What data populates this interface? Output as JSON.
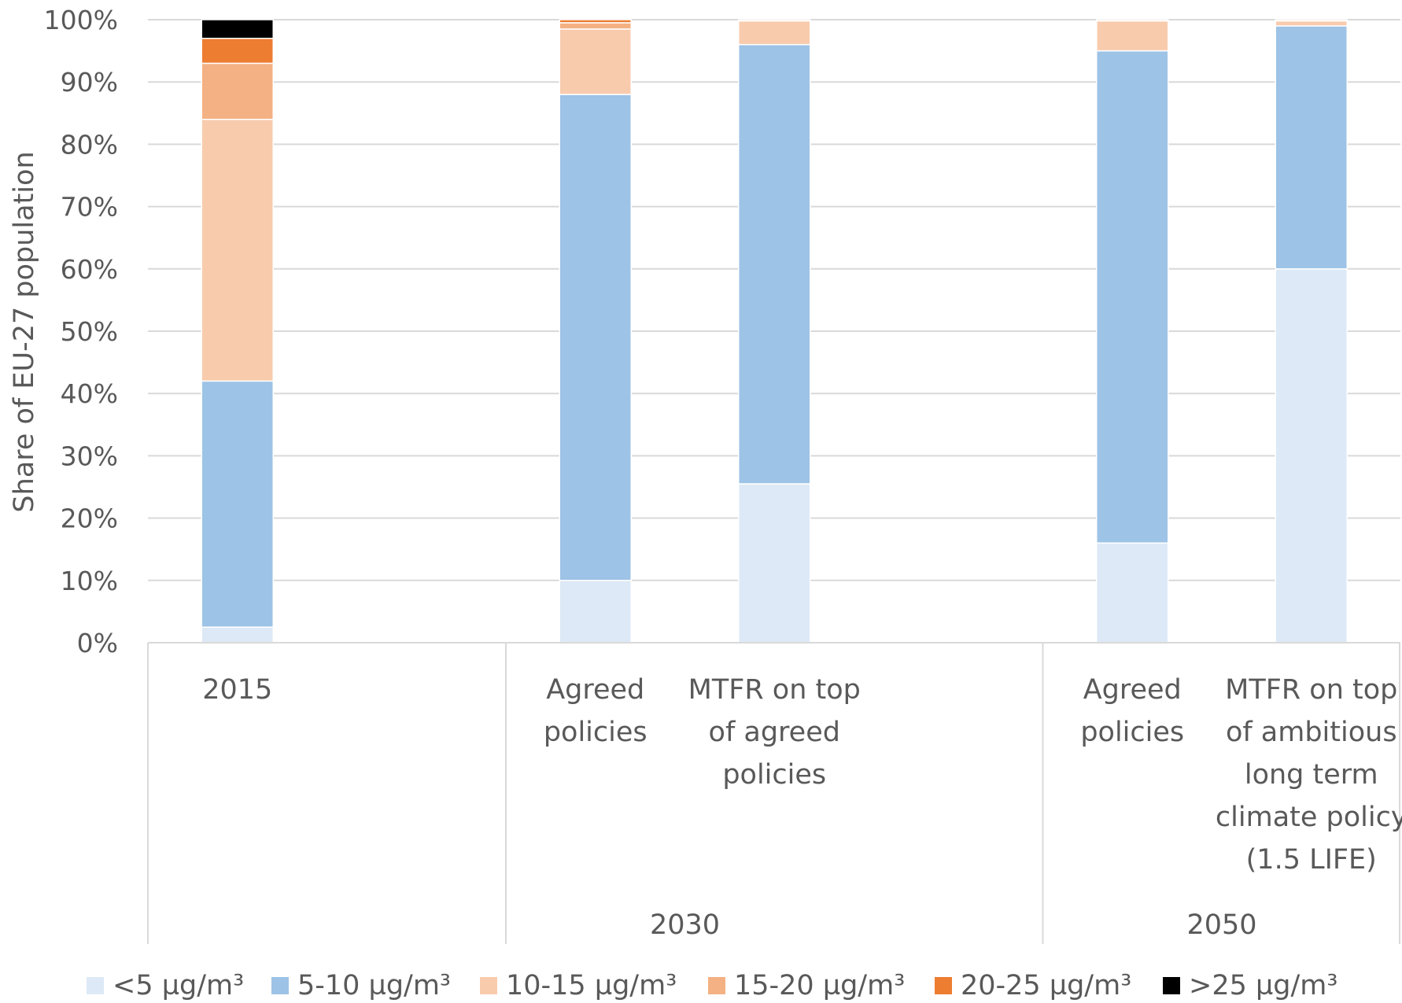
{
  "chart_data": {
    "type": "bar",
    "stacked": true,
    "title": "",
    "xlabel": "",
    "ylabel": "Share of EU-27 population",
    "ylim": [
      0,
      100
    ],
    "yticks": [
      "0%",
      "10%",
      "20%",
      "30%",
      "40%",
      "50%",
      "60%",
      "70%",
      "80%",
      "90%",
      "100%"
    ],
    "grid": true,
    "legend_position": "bottom",
    "groups": [
      {
        "label": "",
        "categories": [
          "2015"
        ]
      },
      {
        "label": "2030",
        "categories": [
          "Agreed policies",
          "MTFR on top of agreed policies"
        ]
      },
      {
        "label": "2050",
        "categories": [
          "Agreed policies",
          "MTFR on top of ambitious long term climate policy (1.5 LIFE)"
        ]
      }
    ],
    "categories": [
      "2015",
      "Agreed policies",
      "MTFR on top of agreed policies",
      "Agreed policies",
      "MTFR on top of ambitious long term climate policy (1.5 LIFE)"
    ],
    "category_label_lines": [
      [
        "2015"
      ],
      [
        "Agreed",
        "policies"
      ],
      [
        "MTFR on top",
        "of agreed",
        "policies"
      ],
      [
        "Agreed",
        "policies"
      ],
      [
        "MTFR on top",
        "of ambitious",
        "long term",
        "climate policy",
        "(1.5 LIFE)"
      ]
    ],
    "series": [
      {
        "name": "<5 µg/m³",
        "color": "#dde9f6",
        "values": [
          2.5,
          10,
          25.5,
          16,
          60
        ]
      },
      {
        "name": "5-10 µg/m³",
        "color": "#9dc3e6",
        "values": [
          39.5,
          78,
          70.5,
          79,
          39
        ]
      },
      {
        "name": "10-15 µg/m³",
        "color": "#f8cbad",
        "values": [
          42,
          10.5,
          3.8,
          4.8,
          0.8
        ]
      },
      {
        "name": "15-20 µg/m³",
        "color": "#f4b183",
        "values": [
          9,
          1,
          0.2,
          0.2,
          0.2
        ]
      },
      {
        "name": "20-25 µg/m³",
        "color": "#ed7d31",
        "values": [
          4,
          0.5,
          0,
          0,
          0
        ]
      },
      {
        "name": ">25 µg/m³",
        "color": "#000000",
        "values": [
          3,
          0,
          0,
          0,
          0
        ]
      }
    ]
  }
}
